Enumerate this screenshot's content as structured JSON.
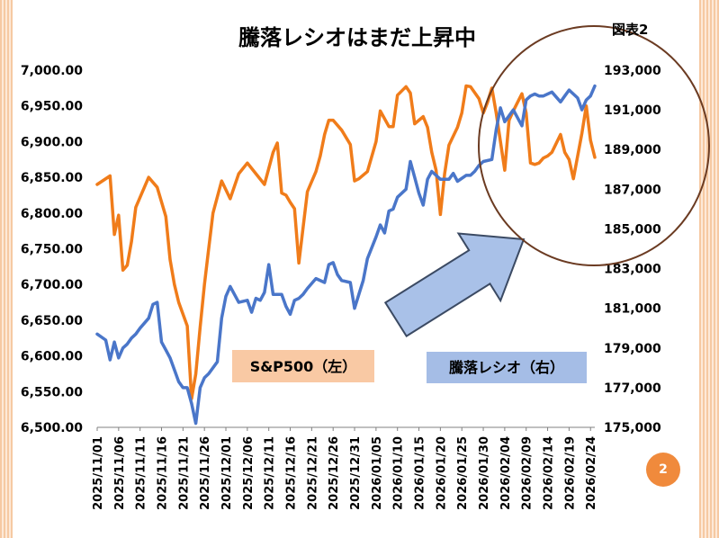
{
  "figure_label": "図表2",
  "page_number": "2",
  "colors": {
    "sp500": "#f07c1a",
    "ratio": "#4a76c9",
    "sp500_label_bg": "#f9c9a4",
    "ratio_label_bg": "#a5bde6",
    "arrow_fill": "#a9c1e8",
    "arrow_stroke": "#3b4a63",
    "ellipse_stroke": "#6b3b22"
  },
  "chart_data": {
    "type": "line",
    "title": "騰落レシオはまだ上昇中",
    "x_tick_labels": [
      "2025/11/01",
      "2025/11/06",
      "2025/11/11",
      "2025/11/16",
      "2025/11/21",
      "2025/11/26",
      "2025/12/01",
      "2025/12/06",
      "2025/12/11",
      "2025/12/16",
      "2025/12/21",
      "2025/12/26",
      "2025/12/31",
      "2026/01/05",
      "2026/01/10",
      "2026/01/15",
      "2026/01/20",
      "2026/01/25",
      "2026/01/30",
      "2026/02/04",
      "2026/02/09",
      "2026/02/14",
      "2026/02/19",
      "2026/02/24"
    ],
    "x_range": [
      0,
      116
    ],
    "y_left": {
      "min": 6500,
      "max": 7000,
      "ticks": [
        "6,500.00",
        "6,550.00",
        "6,600.00",
        "6,650.00",
        "6,700.00",
        "6,750.00",
        "6,800.00",
        "6,850.00",
        "6,900.00",
        "6,950.00",
        "7,000.00"
      ]
    },
    "y_right": {
      "min": 175000,
      "max": 193000,
      "ticks": [
        "175,000",
        "177,000",
        "179,000",
        "181,000",
        "183,000",
        "185,000",
        "187,000",
        "189,000",
        "191,000",
        "193,000"
      ]
    },
    "series": [
      {
        "name": "S&P500（左）",
        "axis": "left",
        "x": [
          0,
          3,
          4,
          5,
          6,
          7,
          8,
          9,
          12,
          14,
          16,
          17,
          18,
          19,
          21,
          22,
          23,
          24,
          25,
          26,
          27,
          29,
          31,
          33,
          35,
          37,
          39,
          41,
          42,
          43,
          44,
          45,
          46,
          47,
          49,
          51,
          52,
          53,
          54,
          55,
          57,
          59,
          60,
          61,
          63,
          65,
          66,
          68,
          69,
          70,
          72,
          73,
          74,
          76,
          77,
          78,
          79,
          80,
          81,
          82,
          84,
          85,
          86,
          87,
          89,
          90,
          91,
          92,
          93,
          95,
          96,
          97,
          98,
          99,
          100,
          101,
          102,
          103,
          104,
          105,
          106,
          108,
          109,
          110,
          111,
          113,
          114,
          115,
          116
        ],
        "y": [
          6840,
          6852,
          6770,
          6797,
          6720,
          6727,
          6760,
          6808,
          6850,
          6836,
          6795,
          6735,
          6700,
          6675,
          6642,
          6540,
          6575,
          6640,
          6700,
          6750,
          6800,
          6845,
          6820,
          6855,
          6870,
          6855,
          6840,
          6885,
          6898,
          6828,
          6825,
          6815,
          6806,
          6730,
          6830,
          6858,
          6880,
          6910,
          6930,
          6930,
          6916,
          6896,
          6845,
          6848,
          6858,
          6900,
          6943,
          6921,
          6921,
          6965,
          6977,
          6968,
          6925,
          6935,
          6920,
          6885,
          6860,
          6798,
          6855,
          6895,
          6920,
          6940,
          6978,
          6977,
          6960,
          6940,
          6955,
          6975,
          6940,
          6860,
          6930,
          6943,
          6955,
          6967,
          6940,
          6870,
          6868,
          6870,
          6877,
          6880,
          6885,
          6910,
          6885,
          6875,
          6848,
          6912,
          6950,
          6902,
          6878
        ]
      },
      {
        "name": "騰落レシオ（右）",
        "axis": "right",
        "x": [
          0,
          2,
          3,
          4,
          5,
          6,
          7,
          8,
          9,
          10,
          12,
          13,
          14,
          15,
          16,
          17,
          18,
          19,
          20,
          21,
          22,
          23,
          24,
          25,
          26,
          28,
          29,
          30,
          31,
          33,
          35,
          36,
          37,
          38,
          39,
          40,
          41,
          42,
          43,
          44,
          45,
          46,
          47,
          48,
          49,
          51,
          53,
          54,
          55,
          56,
          57,
          59,
          60,
          61,
          62,
          63,
          65,
          66,
          67,
          68,
          69,
          70,
          72,
          73,
          74,
          75,
          76,
          77,
          78,
          80,
          81,
          82,
          83,
          84,
          86,
          87,
          88,
          89,
          90,
          92,
          93,
          94,
          95,
          96,
          97,
          99,
          100,
          101,
          102,
          103,
          104,
          106,
          108,
          109,
          110,
          111,
          112,
          113,
          114,
          115,
          116
        ],
        "y": [
          179700,
          179400,
          178400,
          179300,
          178500,
          179000,
          179200,
          179500,
          179700,
          180000,
          180500,
          181200,
          181300,
          179300,
          178900,
          178500,
          177900,
          177300,
          177000,
          177000,
          176200,
          175200,
          177000,
          177500,
          177700,
          178300,
          180500,
          181600,
          182100,
          181300,
          181400,
          180800,
          181500,
          181400,
          181800,
          183200,
          181700,
          181700,
          181700,
          181100,
          180700,
          181400,
          181500,
          181700,
          182000,
          182500,
          182300,
          183200,
          183300,
          182700,
          182400,
          182300,
          181000,
          181700,
          182400,
          183500,
          184600,
          185200,
          184800,
          185900,
          186000,
          186600,
          187000,
          188400,
          187600,
          186800,
          186200,
          187500,
          187900,
          187500,
          187500,
          187500,
          187800,
          187400,
          187700,
          187700,
          187900,
          188200,
          188400,
          188500,
          190000,
          191100,
          190400,
          190700,
          191000,
          190200,
          191500,
          191700,
          191800,
          191700,
          191700,
          191900,
          191400,
          191700,
          192000,
          191800,
          191600,
          191000,
          191500,
          191700,
          192200
        ]
      }
    ],
    "legend": [
      "S&P500（左）",
      "騰落レシオ（右）"
    ],
    "annotations": [
      "arrow pointing up-right toward the recent ratio peak",
      "ellipse around recent period (Feb 2026)"
    ]
  }
}
